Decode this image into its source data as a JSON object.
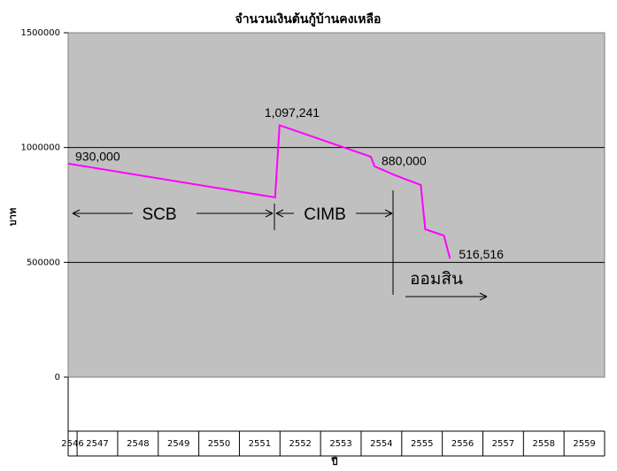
{
  "chart_data": {
    "type": "line",
    "title": "จำนวนเงินต้นกู้บ้านคงเหลือ",
    "y_label": "บาท",
    "x_label": "ปี",
    "categories": [
      "2546",
      "2547",
      "2548",
      "2549",
      "2550",
      "2551",
      "2552",
      "2553",
      "2554",
      "2555",
      "2556",
      "2557",
      "2558",
      "2559"
    ],
    "x": [
      2546.78,
      2551.88,
      2551.99,
      2554.24,
      2554.33,
      2554.83,
      2555.47,
      2555.58,
      2556.04,
      2556.19
    ],
    "series": [
      {
        "color": "#ff00ff",
        "values": [
          930000,
          783000,
          1097241,
          960000,
          918000,
          880000,
          837000,
          644000,
          617000,
          516516
        ],
        "value_labels": [
          "930,000",
          null,
          "1,097,241",
          null,
          null,
          "880,000",
          null,
          null,
          null,
          "516,516"
        ]
      }
    ],
    "xlim": [
      2546.78,
      2560
    ],
    "ylim": [
      0,
      1500000
    ],
    "yticks": [
      0,
      500000,
      1000000,
      1500000
    ],
    "grid": true,
    "annotations": [
      "SCB",
      "CIMB",
      "ออมสิน"
    ]
  }
}
